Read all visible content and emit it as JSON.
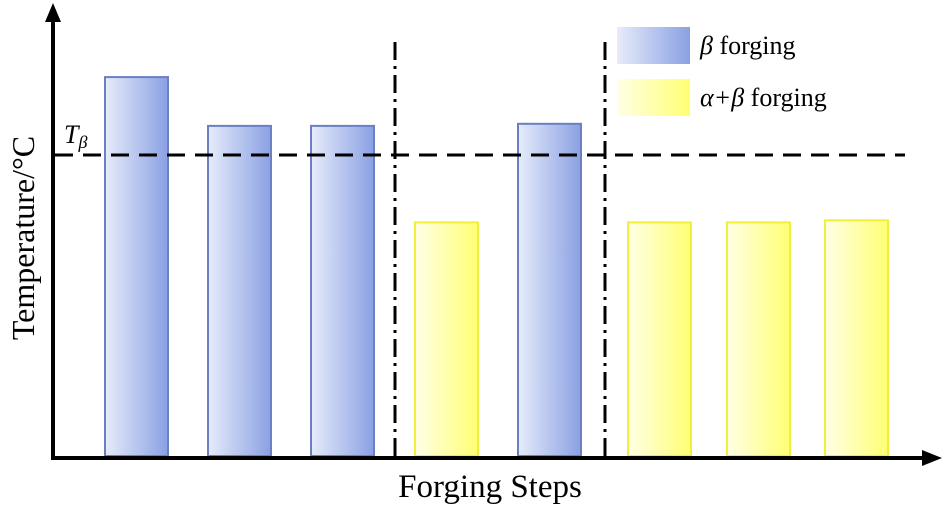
{
  "chart_data": {
    "type": "bar",
    "xlabel": "Forging Steps",
    "ylabel": "Temperature/°C",
    "threshold": {
      "label_main": "T",
      "label_sub": "β",
      "value": 290
    },
    "ylim": [
      0,
      420
    ],
    "legend_position": "top-right",
    "grid": false,
    "series": [
      {
        "name_symbol": "β",
        "name_text": " forging",
        "color": "#8fa6e6"
      },
      {
        "name_symbol": "α+β",
        "name_text": " forging",
        "color": "#ffff7a"
      }
    ],
    "bars": [
      {
        "series": 0,
        "value": 365
      },
      {
        "series": 0,
        "value": 318
      },
      {
        "series": 0,
        "value": 318
      },
      {
        "series": 1,
        "value": 225
      },
      {
        "series": 0,
        "value": 320
      },
      {
        "series": 1,
        "value": 225
      },
      {
        "series": 1,
        "value": 225
      },
      {
        "series": 1,
        "value": 227
      }
    ],
    "separators_after_bar": [
      3,
      5
    ]
  }
}
